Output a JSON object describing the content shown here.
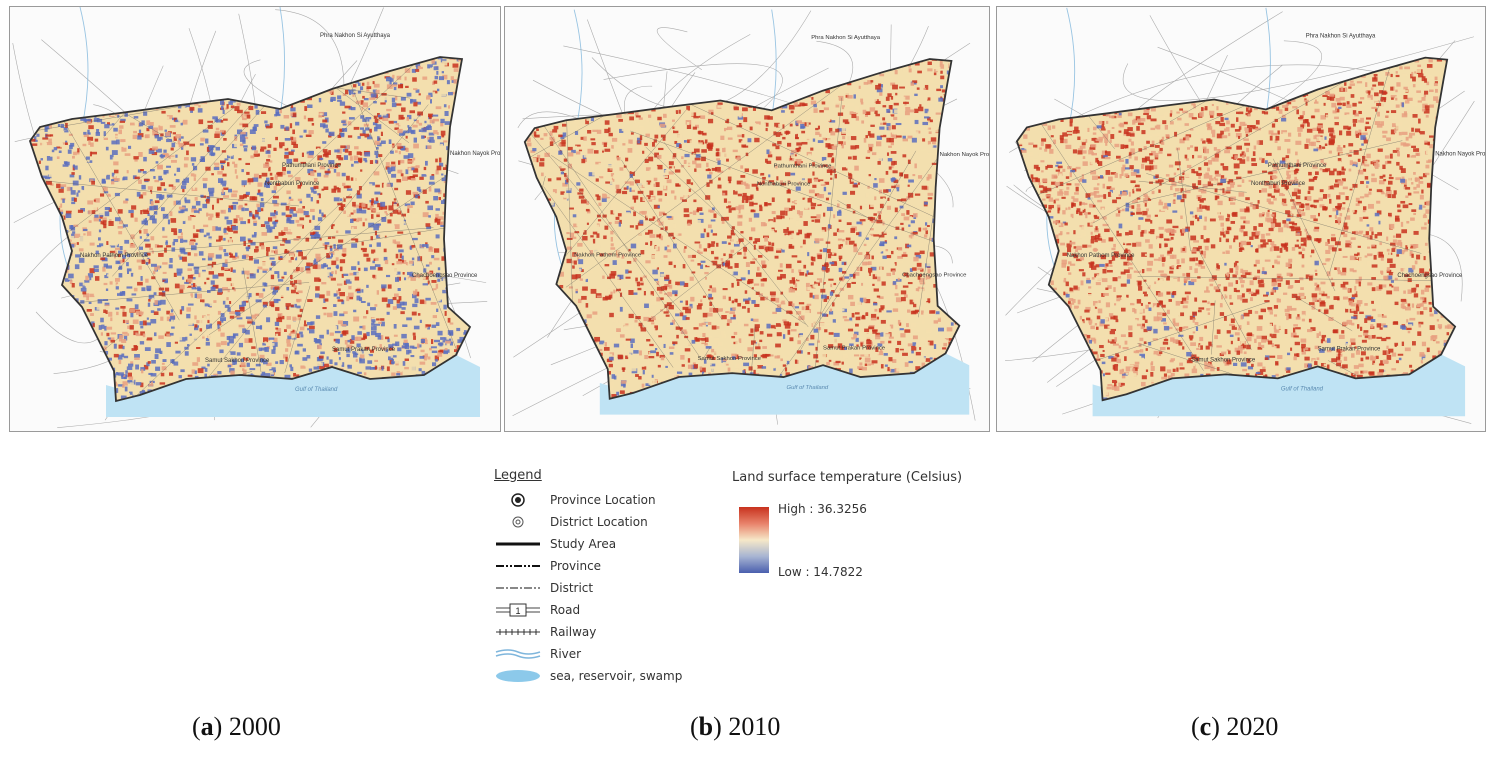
{
  "panels": [
    {
      "id": "a",
      "caption_letter": "a",
      "caption_year": "2000",
      "dominant": "cool",
      "labels": {
        "ayutthaya": "Phra Nakhon Si Ayutthaya",
        "pathumthani": "Pathumthani Province",
        "nakhon_pathom": "Nakhon Pathom Province",
        "nonthaburi": "Nonthaburi Province",
        "samut_sakhon": "Samut Sakhon Province",
        "samut_prakan": "Samut Prakan Province",
        "nakhon_nayok": "Nakhon Nayok Province",
        "chachoengsao": "Chachoengsao Province",
        "gulf": "Gulf of Thailand"
      }
    },
    {
      "id": "b",
      "caption_letter": "b",
      "caption_year": "2010",
      "dominant": "warm",
      "labels": {
        "ayutthaya": "Phra Nakhon Si Ayutthaya",
        "pathumthani": "Pathumthani Province",
        "nakhon_pathom": "Nakhon Pathom Province",
        "nonthaburi": "Nonthaburi Province",
        "samut_sakhon": "Samut Sakhon Province",
        "samut_prakan": "Samut Prakan Province",
        "nakhon_nayok": "Nakhon Nayok Province",
        "chachoengsao": "Chachoengsao Province",
        "gulf": "Gulf of Thailand"
      }
    },
    {
      "id": "c",
      "caption_letter": "c",
      "caption_year": "2020",
      "dominant": "hot",
      "labels": {
        "ayutthaya": "Phra Nakhon Si Ayutthaya",
        "pathumthani": "Pathumthani Province",
        "nakhon_pathom": "Nakhon Pathom Province",
        "nonthaburi": "Nonthaburi Province",
        "samut_sakhon": "Samut Sakhon Province",
        "samut_prakan": "Samut Prakan Province",
        "nakhon_nayok": "Nakhon Nayok Province",
        "chachoengsao": "Chachoengsao Province",
        "gulf": "Gulf of Thailand"
      }
    }
  ],
  "legend": {
    "title": "Legend",
    "items": [
      {
        "label": "Province Location",
        "icon": "province-location-icon"
      },
      {
        "label": "District Location",
        "icon": "district-location-icon"
      },
      {
        "label": "Study Area",
        "icon": "study-area-line-icon"
      },
      {
        "label": "Province",
        "icon": "province-boundary-icon"
      },
      {
        "label": "District",
        "icon": "district-boundary-icon"
      },
      {
        "label": "Road",
        "icon": "road-shield-icon",
        "shield_text": "1"
      },
      {
        "label": "Railway",
        "icon": "railway-icon"
      },
      {
        "label": "River",
        "icon": "river-icon"
      },
      {
        "label": "sea, reservoir, swamp",
        "icon": "water-body-icon"
      }
    ]
  },
  "lst": {
    "title": "Land surface temperature (Celsius)",
    "high_label": "High : 36.3256",
    "low_label": "Low : 14.7822",
    "high_value": 36.3256,
    "low_value": 14.7822,
    "colors": {
      "high": "#c8321e",
      "mid": "#f6e8c8",
      "low": "#4a5fae"
    }
  },
  "colors": {
    "water": "#bfe3f4",
    "boundary": "#333333",
    "roads": "#8a8a8a"
  }
}
